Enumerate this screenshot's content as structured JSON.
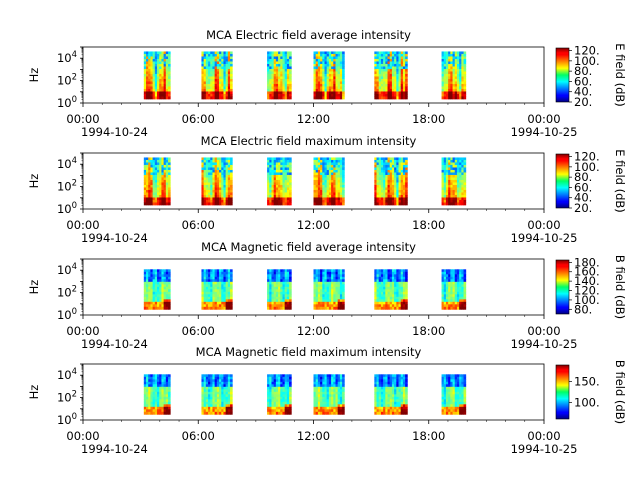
{
  "chart_data": [
    {
      "type": "heatmap",
      "title": "MCA  Electric field average intensity",
      "ylabel": "Hz",
      "yscale": "log",
      "ylim": [
        1,
        100000
      ],
      "yticks": [
        {
          "value": 1,
          "base": "10",
          "exp": "0"
        },
        {
          "value": 100,
          "base": "10",
          "exp": "2"
        },
        {
          "value": 10000,
          "base": "10",
          "exp": "4"
        }
      ],
      "xlim": [
        "1994-10-24 00:00",
        "1994-10-25 00:00"
      ],
      "xticks": [
        "00:00",
        "06:00",
        "12:00",
        "18:00",
        "00:00"
      ],
      "xtick_dates": [
        "1994-10-24",
        "",
        "",
        "",
        "1994-10-25"
      ],
      "colorbar": {
        "label": "E field (dB)",
        "ticks": [
          "20.",
          "40.",
          "60.",
          "80.",
          "100.",
          "120."
        ],
        "range": [
          20,
          125
        ]
      },
      "freq_range_hz": [
        3,
        40000
      ],
      "data_blocks": [
        {
          "start": "03:10",
          "end": "04:30"
        },
        {
          "start": "06:10",
          "end": "07:40"
        },
        {
          "start": "09:35",
          "end": "10:50"
        },
        {
          "start": "12:00",
          "end": "13:30"
        },
        {
          "start": "15:10",
          "end": "16:50"
        },
        {
          "start": "18:40",
          "end": "19:50"
        }
      ]
    },
    {
      "type": "heatmap",
      "title": "MCA  Electric field maximum intensity",
      "ylabel": "Hz",
      "yscale": "log",
      "ylim": [
        1,
        100000
      ],
      "yticks": [
        {
          "value": 1,
          "base": "10",
          "exp": "0"
        },
        {
          "value": 100,
          "base": "10",
          "exp": "2"
        },
        {
          "value": 10000,
          "base": "10",
          "exp": "4"
        }
      ],
      "xlim": [
        "1994-10-24 00:00",
        "1994-10-25 00:00"
      ],
      "xticks": [
        "00:00",
        "06:00",
        "12:00",
        "18:00",
        "00:00"
      ],
      "xtick_dates": [
        "1994-10-24",
        "",
        "",
        "",
        "1994-10-25"
      ],
      "colorbar": {
        "label": "E field (dB)",
        "ticks": [
          "20.",
          "40.",
          "60.",
          "80.",
          "100.",
          "120."
        ],
        "range": [
          20,
          125
        ]
      },
      "freq_range_hz": [
        3,
        40000
      ],
      "data_blocks": [
        {
          "start": "03:10",
          "end": "04:30"
        },
        {
          "start": "06:10",
          "end": "07:40"
        },
        {
          "start": "09:35",
          "end": "10:50"
        },
        {
          "start": "12:00",
          "end": "13:30"
        },
        {
          "start": "15:10",
          "end": "16:50"
        },
        {
          "start": "18:40",
          "end": "19:50"
        }
      ]
    },
    {
      "type": "heatmap",
      "title": "MCA  Magnetic field average intensity",
      "ylabel": "Hz",
      "yscale": "log",
      "ylim": [
        1,
        100000
      ],
      "yticks": [
        {
          "value": 1,
          "base": "10",
          "exp": "0"
        },
        {
          "value": 100,
          "base": "10",
          "exp": "2"
        },
        {
          "value": 10000,
          "base": "10",
          "exp": "4"
        }
      ],
      "xlim": [
        "1994-10-24 00:00",
        "1994-10-25 00:00"
      ],
      "xticks": [
        "00:00",
        "06:00",
        "12:00",
        "18:00",
        "00:00"
      ],
      "xtick_dates": [
        "1994-10-24",
        "",
        "",
        "",
        "1994-10-25"
      ],
      "colorbar": {
        "label": "B field (dB)",
        "ticks": [
          "80.",
          "100.",
          "120.",
          "140.",
          "160.",
          "180."
        ],
        "range": [
          70,
          185
        ]
      },
      "freq_range_hz": [
        5,
        12000
      ],
      "data_blocks": [
        {
          "start": "03:10",
          "end": "04:30"
        },
        {
          "start": "06:10",
          "end": "07:40"
        },
        {
          "start": "09:35",
          "end": "10:50"
        },
        {
          "start": "12:00",
          "end": "13:30"
        },
        {
          "start": "15:10",
          "end": "16:50"
        },
        {
          "start": "18:40",
          "end": "19:50"
        }
      ]
    },
    {
      "type": "heatmap",
      "title": "MCA  Magnetic field maximum intensity",
      "ylabel": "Hz",
      "yscale": "log",
      "ylim": [
        1,
        100000
      ],
      "yticks": [
        {
          "value": 1,
          "base": "10",
          "exp": "0"
        },
        {
          "value": 100,
          "base": "10",
          "exp": "2"
        },
        {
          "value": 10000,
          "base": "10",
          "exp": "4"
        }
      ],
      "xlim": [
        "1994-10-24 00:00",
        "1994-10-25 00:00"
      ],
      "xticks": [
        "00:00",
        "06:00",
        "12:00",
        "18:00",
        "00:00"
      ],
      "xtick_dates": [
        "1994-10-24",
        "",
        "",
        "",
        "1994-10-25"
      ],
      "colorbar": {
        "label": "B field (dB)",
        "ticks": [
          "100.",
          "150."
        ],
        "range": [
          60,
          190
        ]
      },
      "freq_range_hz": [
        5,
        12000
      ],
      "data_blocks": [
        {
          "start": "03:10",
          "end": "04:30"
        },
        {
          "start": "06:10",
          "end": "07:40"
        },
        {
          "start": "09:35",
          "end": "10:50"
        },
        {
          "start": "12:00",
          "end": "13:30"
        },
        {
          "start": "15:10",
          "end": "16:50"
        },
        {
          "start": "18:40",
          "end": "19:50"
        }
      ]
    }
  ]
}
